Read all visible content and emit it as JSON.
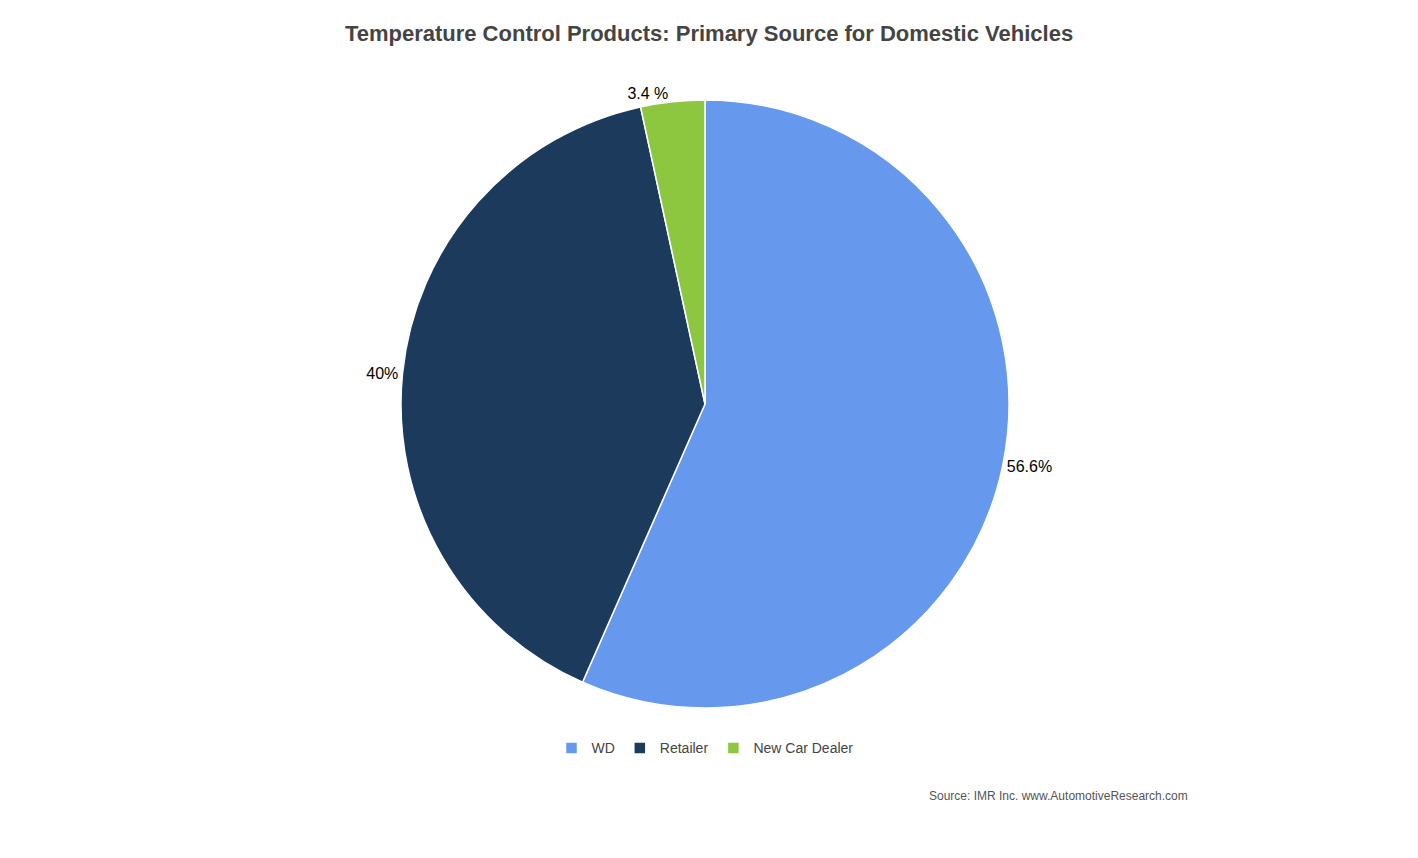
{
  "chart_data": {
    "type": "pie",
    "title": "Temperature Control Products: Primary Source for Domestic Vehicles",
    "categories": [
      "WD",
      "Retailer",
      "New Car Dealer"
    ],
    "values": [
      56.6,
      40.0,
      3.4
    ],
    "value_labels": [
      "56.6%",
      "40%",
      "3.4 %"
    ],
    "colors": [
      "#6699EE",
      "#1C3A5C",
      "#8DC63F"
    ],
    "data_labels": true,
    "legend": "bottom",
    "annotations": [
      "Source: IMR Inc. www.AutomotiveResearch.com"
    ]
  }
}
